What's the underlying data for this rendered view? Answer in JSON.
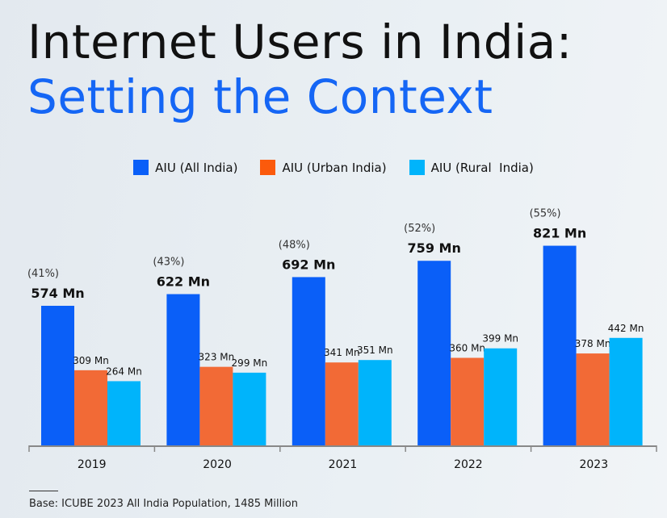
{
  "title_line1": "Internet Users in India:",
  "title_line2": "Setting the Context",
  "chart_data": {
    "type": "bar",
    "categories": [
      "2019",
      "2020",
      "2021",
      "2022",
      "2023"
    ],
    "series": [
      {
        "name": "AIU (All India)",
        "color": "#0a5ff8",
        "values": [
          574,
          622,
          692,
          759,
          821
        ],
        "labels": [
          "574 Mn",
          "622 Mn",
          "692 Mn",
          "759 Mn",
          "821 Mn"
        ],
        "percent_labels": [
          "(41%)",
          "(43%)",
          "(48%)",
          "(52%)",
          "(55%)"
        ]
      },
      {
        "name": "AIU (Urban India)",
        "color": "#f26a36",
        "values": [
          309,
          323,
          341,
          360,
          378
        ],
        "labels": [
          "309 Mn",
          "323 Mn",
          "341 Mn",
          "360 Mn",
          "378 Mn"
        ]
      },
      {
        "name": "AIU (Rural  India)",
        "color": "#00b4fb",
        "values": [
          264,
          299,
          351,
          399,
          442
        ],
        "labels": [
          "264 Mn",
          "299 Mn",
          "351 Mn",
          "399 Mn",
          "442 Mn"
        ]
      }
    ],
    "legend_position": "top",
    "grid": false,
    "ylim": [
      0,
      900
    ]
  },
  "footnote": "Base: ICUBE 2023 All India Population, 1485 Million"
}
